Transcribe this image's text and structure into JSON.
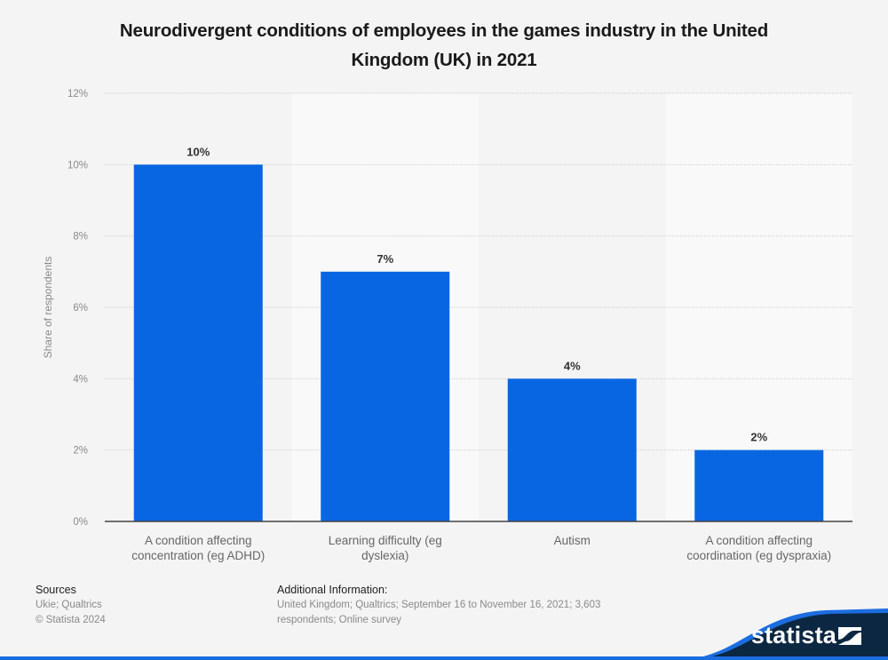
{
  "chart_data": {
    "type": "bar",
    "title": "Neurodivergent conditions of employees in the games industry in the United Kingdom (UK) in 2021",
    "title_lines": [
      "Neurodivergent conditions of employees in the games industry in the United",
      "Kingdom (UK) in 2021"
    ],
    "xlabel": "",
    "ylabel": "Share of respondents",
    "categories": [
      [
        "A condition affecting",
        "concentration (eg ADHD)"
      ],
      [
        "Learning difficulty (eg",
        "dyslexia)"
      ],
      [
        "Autism"
      ],
      [
        "A condition affecting",
        "coordination (eg dyspraxia)"
      ]
    ],
    "values": [
      10,
      7,
      4,
      2
    ],
    "data_labels": [
      "10%",
      "7%",
      "4%",
      "2%"
    ],
    "ylim": [
      0,
      12
    ],
    "yticks": [
      0,
      2,
      4,
      6,
      8,
      10,
      12
    ],
    "ytick_labels": [
      "0%",
      "2%",
      "4%",
      "6%",
      "8%",
      "10%",
      "12%"
    ],
    "grid": true,
    "legend": "none",
    "bar_color": "#0866e3"
  },
  "footer": {
    "sources_heading": "Sources",
    "sources_line1": "Ukie; Qualtrics",
    "sources_line2": "© Statista 2024",
    "info_heading": "Additional Information:",
    "info_text": "United Kingdom; Qualtrics; September 16 to November 16, 2021; 3,603 respondents; Online survey"
  },
  "brand": {
    "logo_text": "statista",
    "logo_bg": "#0b2742",
    "accent": "#1c6de0"
  }
}
